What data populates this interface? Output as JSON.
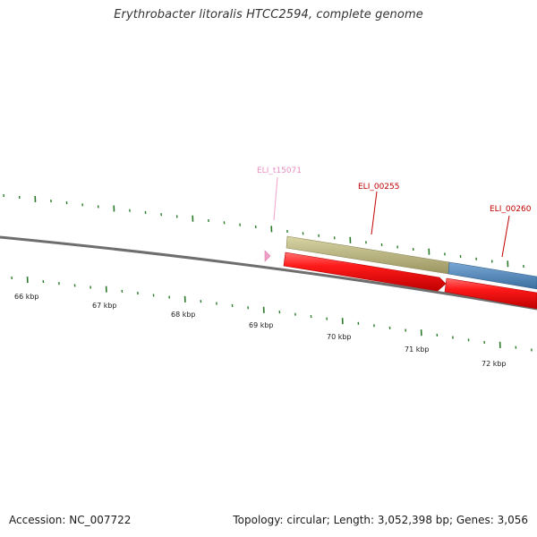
{
  "title": "Erythrobacter litoralis HTCC2594, complete genome",
  "footer": {
    "accession": "Accession: NC_007722",
    "summary": "Topology: circular; Length: 3,052,398 bp; Genes: 3,056"
  },
  "colors": {
    "backbone": "#888888",
    "tick": "#2a7a2a",
    "trna": "#f0a0c8",
    "trna_label": "#e68fbf",
    "gene_red": "#e01010",
    "gene_label": "#c00000",
    "feature_olive": "#b5b07a",
    "feature_blue": "#4f84b5"
  },
  "kbp_labels": [
    "66 kbp",
    "67 kbp",
    "68 kbp",
    "69 kbp",
    "70 kbp",
    "71 kbp",
    "72 kbp"
  ],
  "gene_labels": {
    "trna": "ELI_t15071",
    "gene1": "ELI_00255",
    "gene2": "ELI_00260"
  }
}
